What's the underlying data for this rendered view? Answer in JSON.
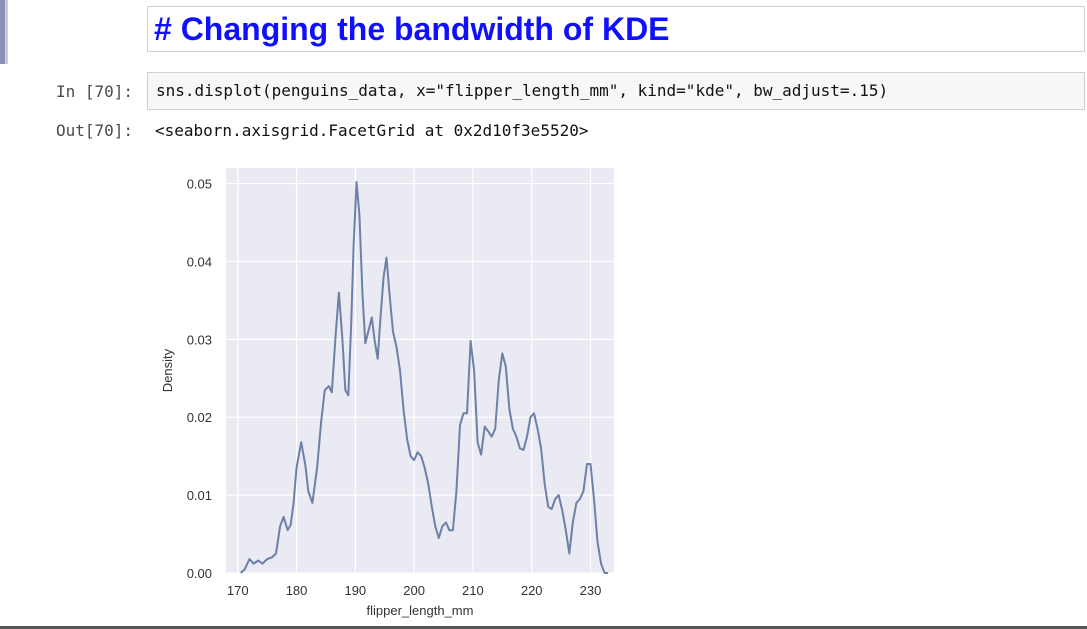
{
  "markdown_cell": {
    "heading": "# Changing the bandwidth of KDE"
  },
  "code_cell": {
    "in_prompt": "In [70]:",
    "source": "sns.displot(penguins_data, x=\"flipper_length_mm\", kind=\"kde\", bw_adjust=.15)",
    "out_prompt": "Out[70]:",
    "output_text": "<seaborn.axisgrid.FacetGrid at 0x2d10f3e5520>"
  },
  "colors": {
    "heading": "#1010ff",
    "plot_background": "#eaeaf2",
    "line": "#6e7fa8",
    "grid": "#ffffff"
  },
  "chart_data": {
    "type": "line",
    "xlabel": "flipper_length_mm",
    "ylabel": "Density",
    "xlim": [
      168,
      234
    ],
    "ylim": [
      0,
      0.052
    ],
    "x_ticks": [
      170,
      180,
      190,
      200,
      210,
      220,
      230
    ],
    "y_ticks": [
      0.0,
      0.01,
      0.02,
      0.03,
      0.04,
      0.05
    ],
    "x_tick_labels": [
      "170",
      "180",
      "190",
      "200",
      "210",
      "220",
      "230"
    ],
    "y_tick_labels": [
      "0.00",
      "0.01",
      "0.02",
      "0.03",
      "0.04",
      "0.05"
    ],
    "grid": true,
    "series": [
      {
        "x": [
          170.5,
          171.2,
          172.0,
          172.7,
          173.5,
          174.2,
          175.0,
          175.8,
          176.5,
          177.2,
          177.8,
          178.5,
          179.0,
          179.5,
          180.0,
          180.8,
          181.5,
          182.0,
          182.7,
          183.5,
          184.2,
          184.8,
          185.5,
          186.0,
          186.7,
          187.2,
          187.8,
          188.3,
          188.8,
          189.3,
          189.7,
          190.2,
          190.7,
          191.2,
          191.7,
          192.2,
          192.8,
          193.3,
          193.8,
          194.3,
          194.8,
          195.3,
          195.8,
          196.4,
          197.0,
          197.6,
          198.2,
          198.8,
          199.4,
          200.0,
          200.6,
          201.2,
          201.8,
          202.4,
          203.0,
          203.6,
          204.2,
          204.8,
          205.4,
          206.0,
          206.6,
          207.2,
          207.8,
          208.4,
          209.0,
          209.6,
          210.2,
          210.8,
          211.4,
          212.0,
          212.6,
          213.2,
          213.8,
          214.4,
          215.0,
          215.6,
          216.2,
          216.8,
          217.4,
          218.0,
          218.6,
          219.2,
          219.8,
          220.4,
          221.0,
          221.6,
          222.2,
          222.8,
          223.4,
          224.0,
          224.6,
          225.2,
          225.8,
          226.4,
          227.0,
          227.6,
          228.2,
          228.8,
          229.4,
          230.0,
          230.6,
          231.2,
          231.8,
          232.4,
          233.0
        ],
        "y": [
          0.0,
          0.0005,
          0.0018,
          0.0012,
          0.0016,
          0.0012,
          0.0018,
          0.002,
          0.0025,
          0.006,
          0.0072,
          0.0055,
          0.0062,
          0.009,
          0.0135,
          0.0168,
          0.0138,
          0.0105,
          0.009,
          0.0135,
          0.0195,
          0.0235,
          0.024,
          0.0232,
          0.031,
          0.036,
          0.03,
          0.0235,
          0.0228,
          0.032,
          0.042,
          0.0502,
          0.046,
          0.036,
          0.0295,
          0.031,
          0.0328,
          0.0298,
          0.0275,
          0.033,
          0.038,
          0.0405,
          0.036,
          0.031,
          0.029,
          0.026,
          0.021,
          0.0172,
          0.015,
          0.0145,
          0.0155,
          0.015,
          0.0135,
          0.0115,
          0.0085,
          0.006,
          0.0045,
          0.006,
          0.0065,
          0.0055,
          0.0055,
          0.0105,
          0.019,
          0.0205,
          0.0205,
          0.0298,
          0.026,
          0.0168,
          0.0152,
          0.0188,
          0.0182,
          0.0175,
          0.0185,
          0.0248,
          0.0282,
          0.0265,
          0.021,
          0.0185,
          0.0175,
          0.016,
          0.0158,
          0.0175,
          0.02,
          0.0205,
          0.0185,
          0.016,
          0.0115,
          0.0085,
          0.0082,
          0.0095,
          0.01,
          0.008,
          0.0055,
          0.0025,
          0.0065,
          0.009,
          0.0095,
          0.0105,
          0.014,
          0.014,
          0.0095,
          0.004,
          0.0012,
          0.0,
          0.0
        ]
      }
    ]
  }
}
